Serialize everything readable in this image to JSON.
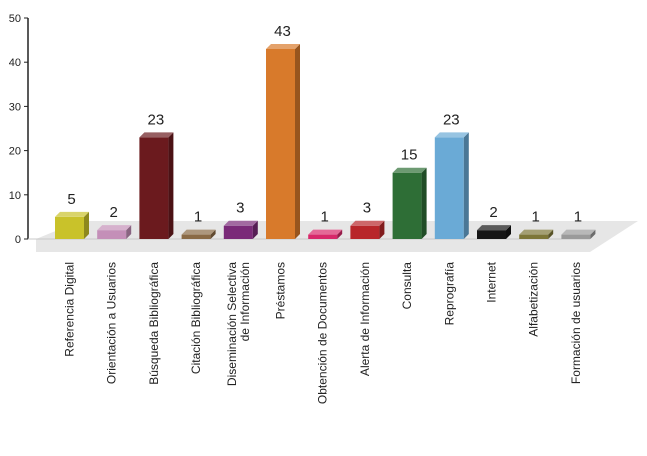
{
  "chart_data": {
    "type": "bar",
    "categories": [
      "Referencia Digital",
      "Orientación a Usuarios",
      "Búsqueda Bibliográfica",
      "Citación Bibliográfica",
      "Diseminación Selectiva de Información",
      "Préstamos",
      "Obtención de Documentos",
      "Alerta de Información",
      "Consulta",
      "Reprografía",
      "Internet",
      "Alfabetización",
      "Formación de usuarios"
    ],
    "values": [
      5,
      2,
      23,
      1,
      3,
      43,
      1,
      3,
      15,
      23,
      2,
      1,
      1
    ],
    "data_labels": [
      "5",
      "2",
      "23",
      "1",
      "3",
      "43",
      "1",
      "3",
      "15",
      "23",
      "2",
      "1",
      "1"
    ],
    "colors": [
      "#c9c22a",
      "#c48fb8",
      "#6b1a1e",
      "#8a6a45",
      "#7a2a78",
      "#d87a2b",
      "#d8286a",
      "#b8262a",
      "#2e6e36",
      "#6aaad6",
      "#161616",
      "#7d7638",
      "#9a9a9a"
    ],
    "ylim": [
      0,
      50
    ],
    "yticks": [
      "0",
      "10",
      "20",
      "30",
      "40",
      "50"
    ],
    "grid": false,
    "legend": "none",
    "title": "",
    "xlabel": "",
    "ylabel": ""
  }
}
